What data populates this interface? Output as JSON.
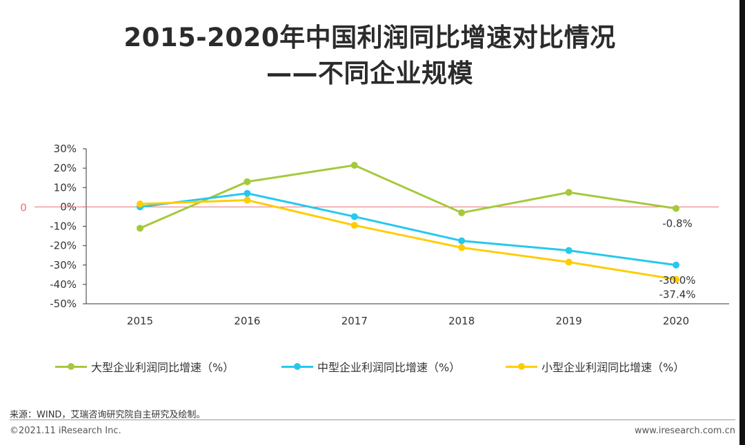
{
  "title_line1": "2015-2020年中国利润同比增速对比情况",
  "title_line2": "——不同企业规模",
  "chart_data": {
    "type": "line",
    "categories": [
      "2015",
      "2016",
      "2017",
      "2018",
      "2019",
      "2020"
    ],
    "ylim": [
      -50,
      30
    ],
    "yticks": [
      "30%",
      "20%",
      "10%",
      "0%",
      "-10%",
      "-20%",
      "-30%",
      "-40%",
      "-50%"
    ],
    "ytick_values": [
      30,
      20,
      10,
      0,
      -10,
      -20,
      -30,
      -40,
      -50
    ],
    "zero_line_label": "0",
    "series": [
      {
        "name": "大型企业利润同比增速（%）",
        "color": "#a5c93a",
        "values": [
          -11.0,
          13.0,
          21.5,
          -3.0,
          7.5,
          -0.8
        ]
      },
      {
        "name": "中型企业利润同比增速（%）",
        "color": "#25c8ee",
        "values": [
          0.0,
          7.0,
          -5.0,
          -17.5,
          -22.5,
          -30.0
        ]
      },
      {
        "name": "小型企业利润同比增速（%）",
        "color": "#ffcc00",
        "values": [
          1.5,
          3.5,
          -9.5,
          -21.0,
          -28.5,
          -37.4
        ]
      }
    ],
    "data_labels": [
      {
        "series": 0,
        "index": 5,
        "text": "-0.8%"
      },
      {
        "series": 1,
        "index": 5,
        "text": "-30.0%"
      },
      {
        "series": 2,
        "index": 5,
        "text": "-37.4%"
      }
    ]
  },
  "source": "来源：WIND，艾瑞咨询研究院自主研究及绘制。",
  "copyright": "©2021.11 iResearch Inc.",
  "website": "www.iresearch.com.cn"
}
